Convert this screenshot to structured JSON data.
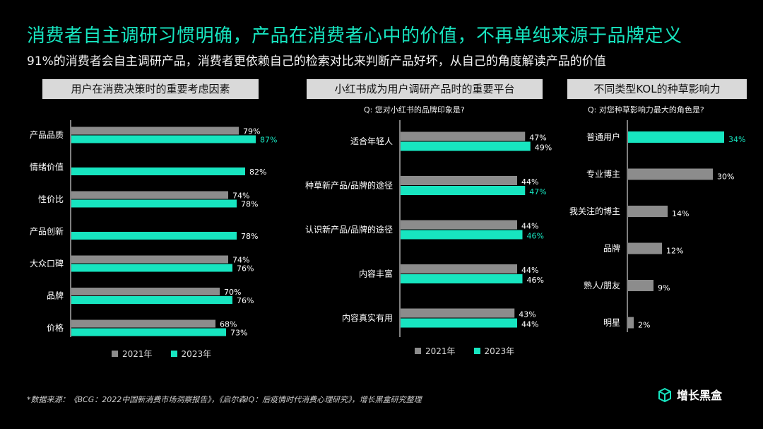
{
  "title": "消费者自主调研习惯明确，产品在消费者心中的价值，不再单纯来源于品牌定义",
  "subtitle": "91%的消费者会自主调研产品，消费者更依赖自己的检索对比来判断产品好坏，从自己的角度解读产品的价值",
  "panels": [
    {
      "header": "用户在消费决策时的重要考虑因素",
      "question": ""
    },
    {
      "header": "小红书成为用户调研产品时的重要平台",
      "question": "Q: 您对小红书的品牌印象是?"
    },
    {
      "header": "不同类型KOL的种草影响力",
      "question": "Q: 对您种草影响力最大的角色是?"
    }
  ],
  "legend": {
    "label_2021": "2021年",
    "label_2023": "2023年"
  },
  "colors": {
    "accent": "#17e5c0",
    "gray": "#8c8c8c",
    "background": "#000000"
  },
  "chart_data": [
    {
      "type": "bar",
      "orientation": "horizontal",
      "title": "用户在消费决策时的重要考虑因素",
      "categories": [
        "产品品质",
        "情绪价值",
        "性价比",
        "产品创新",
        "大众口碑",
        "品牌",
        "价格"
      ],
      "series": [
        {
          "name": "2021年",
          "values": [
            79,
            null,
            74,
            null,
            74,
            70,
            68
          ]
        },
        {
          "name": "2023年",
          "values": [
            87,
            82,
            78,
            78,
            76,
            76,
            73
          ]
        }
      ],
      "highlight": {
        "series": 1,
        "index": 0
      },
      "xlim": [
        0,
        100
      ]
    },
    {
      "type": "bar",
      "orientation": "horizontal",
      "title": "小红书成为用户调研产品时的重要平台",
      "question": "Q: 您对小红书的品牌印象是?",
      "categories": [
        "适合年轻人",
        "种草新产品/品牌的途径",
        "认识新产品/品牌的途径",
        "内容丰富",
        "内容真实有用"
      ],
      "series": [
        {
          "name": "2021年",
          "values": [
            47,
            44,
            44,
            44,
            43
          ]
        },
        {
          "name": "2023年",
          "values": [
            49,
            47,
            46,
            46,
            44
          ]
        }
      ],
      "highlight_indices": [
        1,
        2
      ],
      "xlim": [
        0,
        100
      ]
    },
    {
      "type": "bar",
      "orientation": "horizontal",
      "title": "不同类型KOL的种草影响力",
      "question": "Q: 对您种草影响力最大的角色是?",
      "categories": [
        "普通用户",
        "专业博主",
        "我关注的博主",
        "品牌",
        "熟人/朋友",
        "明星"
      ],
      "values": [
        34,
        30,
        14,
        12,
        9,
        2
      ],
      "highlight_index": 0,
      "xlim": [
        0,
        100
      ]
    }
  ],
  "footnote": "*数据来源：《BCG：2022中国新消费市场洞察报告》，《启尔森IQ：后疫情时代消费心理研究》，增长黑盒研究整理",
  "brand": "增长黑盒"
}
